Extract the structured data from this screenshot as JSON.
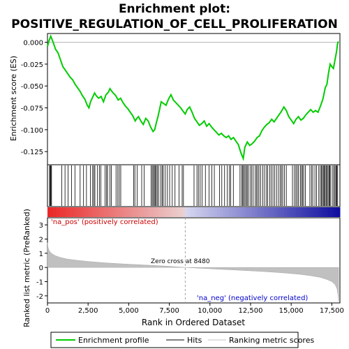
{
  "chart_data": {
    "type": "line",
    "title_line1": "Enrichment plot:",
    "title_line2": "POSITIVE_REGULATION_OF_CELL_PROLIFERATION",
    "top_panel": {
      "ylabel": "Enrichment score (ES)",
      "ylim": [
        -0.14,
        0.01
      ],
      "yticks": [
        "0.000",
        "-0.025",
        "-0.050",
        "-0.075",
        "-0.100",
        "-0.125"
      ],
      "ytick_values": [
        0.0,
        -0.025,
        -0.05,
        -0.075,
        -0.1,
        -0.125
      ],
      "series_color": "#00cc00",
      "es_profile": [
        [
          0,
          -0.005
        ],
        [
          100,
          0.002
        ],
        [
          200,
          0.007
        ],
        [
          350,
          0.0
        ],
        [
          500,
          -0.008
        ],
        [
          650,
          -0.012
        ],
        [
          800,
          -0.02
        ],
        [
          950,
          -0.028
        ],
        [
          1100,
          -0.032
        ],
        [
          1250,
          -0.036
        ],
        [
          1400,
          -0.04
        ],
        [
          1550,
          -0.043
        ],
        [
          1700,
          -0.048
        ],
        [
          1850,
          -0.052
        ],
        [
          2000,
          -0.056
        ],
        [
          2150,
          -0.061
        ],
        [
          2300,
          -0.065
        ],
        [
          2450,
          -0.072
        ],
        [
          2550,
          -0.075
        ],
        [
          2650,
          -0.068
        ],
        [
          2800,
          -0.062
        ],
        [
          2900,
          -0.058
        ],
        [
          3000,
          -0.061
        ],
        [
          3150,
          -0.064
        ],
        [
          3300,
          -0.062
        ],
        [
          3450,
          -0.068
        ],
        [
          3600,
          -0.06
        ],
        [
          3750,
          -0.057
        ],
        [
          3850,
          -0.053
        ],
        [
          4000,
          -0.057
        ],
        [
          4200,
          -0.061
        ],
        [
          4350,
          -0.066
        ],
        [
          4500,
          -0.064
        ],
        [
          4650,
          -0.069
        ],
        [
          4800,
          -0.073
        ],
        [
          4950,
          -0.076
        ],
        [
          5100,
          -0.08
        ],
        [
          5250,
          -0.084
        ],
        [
          5400,
          -0.09
        ],
        [
          5500,
          -0.087
        ],
        [
          5600,
          -0.085
        ],
        [
          5750,
          -0.09
        ],
        [
          5900,
          -0.094
        ],
        [
          6050,
          -0.087
        ],
        [
          6200,
          -0.09
        ],
        [
          6350,
          -0.097
        ],
        [
          6500,
          -0.102
        ],
        [
          6600,
          -0.1
        ],
        [
          6700,
          -0.092
        ],
        [
          6800,
          -0.085
        ],
        [
          6900,
          -0.077
        ],
        [
          7000,
          -0.068
        ],
        [
          7150,
          -0.07
        ],
        [
          7300,
          -0.072
        ],
        [
          7450,
          -0.065
        ],
        [
          7600,
          -0.06
        ],
        [
          7750,
          -0.066
        ],
        [
          7900,
          -0.069
        ],
        [
          8050,
          -0.072
        ],
        [
          8200,
          -0.075
        ],
        [
          8350,
          -0.079
        ],
        [
          8480,
          -0.082
        ],
        [
          8600,
          -0.077
        ],
        [
          8750,
          -0.074
        ],
        [
          8900,
          -0.08
        ],
        [
          9050,
          -0.087
        ],
        [
          9200,
          -0.091
        ],
        [
          9350,
          -0.095
        ],
        [
          9500,
          -0.093
        ],
        [
          9650,
          -0.09
        ],
        [
          9800,
          -0.096
        ],
        [
          9950,
          -0.093
        ],
        [
          10100,
          -0.097
        ],
        [
          10250,
          -0.1
        ],
        [
          10400,
          -0.103
        ],
        [
          10550,
          -0.106
        ],
        [
          10700,
          -0.104
        ],
        [
          10850,
          -0.107
        ],
        [
          11000,
          -0.109
        ],
        [
          11150,
          -0.107
        ],
        [
          11300,
          -0.111
        ],
        [
          11450,
          -0.109
        ],
        [
          11600,
          -0.113
        ],
        [
          11750,
          -0.117
        ],
        [
          11900,
          -0.126
        ],
        [
          12050,
          -0.133
        ],
        [
          12150,
          -0.12
        ],
        [
          12300,
          -0.114
        ],
        [
          12450,
          -0.118
        ],
        [
          12600,
          -0.116
        ],
        [
          12750,
          -0.113
        ],
        [
          12900,
          -0.109
        ],
        [
          13050,
          -0.107
        ],
        [
          13200,
          -0.101
        ],
        [
          13350,
          -0.097
        ],
        [
          13500,
          -0.094
        ],
        [
          13650,
          -0.092
        ],
        [
          13800,
          -0.088
        ],
        [
          13950,
          -0.091
        ],
        [
          14100,
          -0.087
        ],
        [
          14250,
          -0.083
        ],
        [
          14400,
          -0.079
        ],
        [
          14550,
          -0.074
        ],
        [
          14700,
          -0.078
        ],
        [
          14850,
          -0.085
        ],
        [
          15000,
          -0.089
        ],
        [
          15150,
          -0.093
        ],
        [
          15300,
          -0.088
        ],
        [
          15450,
          -0.085
        ],
        [
          15600,
          -0.089
        ],
        [
          15750,
          -0.087
        ],
        [
          15900,
          -0.083
        ],
        [
          16050,
          -0.08
        ],
        [
          16200,
          -0.077
        ],
        [
          16350,
          -0.08
        ],
        [
          16500,
          -0.078
        ],
        [
          16650,
          -0.08
        ],
        [
          16800,
          -0.073
        ],
        [
          16950,
          -0.065
        ],
        [
          17100,
          -0.052
        ],
        [
          17200,
          -0.048
        ],
        [
          17300,
          -0.035
        ],
        [
          17400,
          -0.025
        ],
        [
          17500,
          -0.028
        ],
        [
          17600,
          -0.03
        ],
        [
          17700,
          -0.02
        ],
        [
          17800,
          -0.01
        ],
        [
          17850,
          -0.002
        ],
        [
          17900,
          0.001
        ]
      ]
    },
    "hits": [
      130,
      170,
      210,
      250,
      880,
      1080,
      1270,
      1480,
      1690,
      2010,
      2220,
      2400,
      2640,
      2780,
      2850,
      2920,
      3080,
      3200,
      3290,
      3550,
      3640,
      3700,
      3850,
      3930,
      4220,
      4330,
      4420,
      4510,
      5300,
      5380,
      5520,
      5800,
      5950,
      6380,
      6450,
      6520,
      6580,
      6640,
      6700,
      6760,
      6850,
      6980,
      7060,
      7130,
      7250,
      7380,
      7520,
      7680,
      7850,
      8100,
      8290,
      8370,
      9020,
      9200,
      9290,
      9400,
      9520,
      9720,
      9950,
      10120,
      10270,
      10590,
      10730,
      10900,
      11070,
      11200,
      11280,
      11440,
      11850,
      11950,
      12020,
      12070,
      12150,
      12220,
      12290,
      12360,
      12470,
      12560,
      12660,
      12790,
      12860,
      12940,
      13020,
      13130,
      13250,
      13360,
      13480,
      13560,
      13680,
      13780,
      13880,
      13990,
      14100,
      14220,
      14320,
      14400,
      14480,
      14590,
      14700,
      15080,
      15200,
      15290,
      15370,
      15450,
      15560,
      15630,
      15700,
      15770,
      15870,
      16150,
      16250,
      16330,
      16460,
      16560,
      16700,
      16790,
      16860,
      16920,
      16980,
      17040,
      17090,
      17150,
      17210,
      17270,
      17330,
      17380,
      17440,
      17560,
      17640,
      17700,
      17760,
      17810,
      17860
    ],
    "bottom_panel": {
      "ylabel": "Ranked list metric (PreRanked)",
      "xlabel": "Rank in Ordered Dataset",
      "ylim": [
        -2.5,
        3.5
      ],
      "yticks": [
        "3",
        "2",
        "1",
        "0",
        "-1",
        "-2"
      ],
      "ytick_values": [
        3,
        2,
        1,
        0,
        -1,
        -2
      ],
      "xlim": [
        0,
        18000
      ],
      "xticks": [
        "0",
        "2,500",
        "5,000",
        "7,500",
        "10,000",
        "12,500",
        "15,000",
        "17,500"
      ],
      "xtick_values": [
        0,
        2500,
        5000,
        7500,
        10000,
        12500,
        15000,
        17500
      ],
      "zero_cross_label": "Zero cross at 8480",
      "zero_cross": 8480,
      "pos_label": "'na_pos' (positively correlated)",
      "neg_label": "'na_neg' (negatively correlated)",
      "metric_curve": [
        [
          0,
          1.75
        ],
        [
          30,
          1.45
        ],
        [
          80,
          1.25
        ],
        [
          150,
          1.1
        ],
        [
          300,
          0.95
        ],
        [
          500,
          0.82
        ],
        [
          800,
          0.7
        ],
        [
          1200,
          0.6
        ],
        [
          1700,
          0.52
        ],
        [
          2500,
          0.42
        ],
        [
          3500,
          0.33
        ],
        [
          4500,
          0.26
        ],
        [
          5500,
          0.2
        ],
        [
          6500,
          0.14
        ],
        [
          7500,
          0.08
        ],
        [
          8480,
          0.0
        ],
        [
          9500,
          -0.06
        ],
        [
          10500,
          -0.12
        ],
        [
          11500,
          -0.18
        ],
        [
          12500,
          -0.24
        ],
        [
          13500,
          -0.3
        ],
        [
          14500,
          -0.38
        ],
        [
          15500,
          -0.48
        ],
        [
          16200,
          -0.58
        ],
        [
          16800,
          -0.7
        ],
        [
          17200,
          -0.85
        ],
        [
          17500,
          -1.0
        ],
        [
          17700,
          -1.2
        ],
        [
          17820,
          -1.5
        ],
        [
          17880,
          -1.9
        ],
        [
          17920,
          -2.4
        ]
      ],
      "metric_color": "#c0c0c0"
    },
    "legend": {
      "items": [
        {
          "label": "Enrichment profile",
          "color": "#00cc00"
        },
        {
          "label": "Hits",
          "color": "#000000"
        },
        {
          "label": "Ranking metric scores",
          "color": "#c0c0c0"
        }
      ]
    }
  }
}
